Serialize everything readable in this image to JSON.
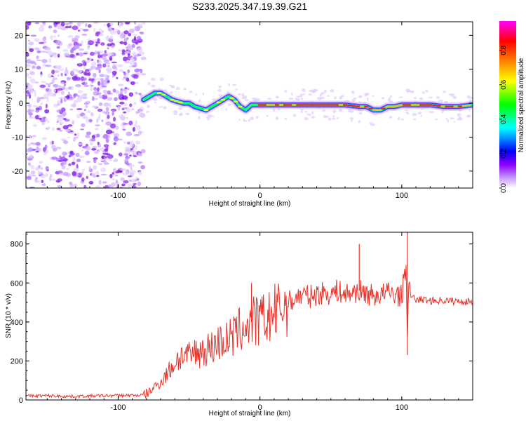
{
  "chart_data": [
    {
      "type": "heatmap",
      "title": "S233.2025.347.19.39.G21",
      "xlabel": "Height of straight line (km)",
      "ylabel": "Frequency (Hz)",
      "xlim": [
        -165,
        150
      ],
      "ylim": [
        -25,
        24
      ],
      "xticks": [
        -100,
        0,
        100
      ],
      "xtick_labels": [
        "-100",
        "0",
        "100"
      ],
      "yticks": [
        20,
        10,
        0,
        -10,
        -20
      ],
      "ytick_labels": [
        "20",
        "10",
        "0",
        "-10",
        "-20"
      ],
      "noise_region_x": [
        -165,
        -82
      ],
      "ridge": {
        "x": [
          -82,
          -78,
          -74,
          -70,
          -66,
          -62,
          -58,
          -54,
          -50,
          -46,
          -42,
          -38,
          -34,
          -30,
          -26,
          -22,
          -18,
          -14,
          -10,
          -6,
          -2,
          0,
          10,
          20,
          30,
          40,
          50,
          60,
          70,
          75,
          80,
          85,
          90,
          95,
          100,
          105,
          110,
          120,
          130,
          140,
          150
        ],
        "y": [
          1,
          2,
          3,
          3,
          2,
          1,
          0.5,
          0,
          0,
          -1,
          -1.5,
          -2,
          -1,
          0,
          1,
          2,
          1,
          -1,
          -2,
          -0.5,
          -0.5,
          -0.5,
          -0.5,
          -0.5,
          -0.5,
          -0.5,
          -0.5,
          -0.5,
          -1,
          -1,
          -2,
          -2,
          -1,
          -1,
          -0.5,
          -0.5,
          -0.5,
          -0.5,
          -1,
          -1,
          -0.5
        ]
      },
      "colorbar": {
        "label": "Normalized spectral amplitude",
        "range": [
          0,
          0.97
        ],
        "ticks": [
          0.0,
          0.2,
          0.4,
          0.6,
          0.8
        ],
        "tick_labels": [
          "0.0",
          "0.2",
          "0.4",
          "0.6",
          "0.8"
        ],
        "colors": [
          "#ffffff",
          "#8c00ff",
          "#0000ff",
          "#00ffff",
          "#00ff00",
          "#ffff00",
          "#ff8000",
          "#ff0000",
          "#ff00ff"
        ]
      }
    },
    {
      "type": "line",
      "title": "",
      "xlabel": "Height of straight line (km)",
      "ylabel": "SNR (10 * v/v)",
      "xlim": [
        -165,
        150
      ],
      "ylim": [
        0,
        860
      ],
      "xticks": [
        -100,
        0,
        100
      ],
      "xtick_labels": [
        "-100",
        "0",
        "100"
      ],
      "yticks": [
        0,
        200,
        400,
        600,
        800
      ],
      "ytick_labels": [
        "0",
        "200",
        "400",
        "600",
        "800"
      ],
      "color": "#e8322a",
      "series": [
        {
          "name": "SNR",
          "x": [
            -165,
            -150,
            -135,
            -120,
            -105,
            -90,
            -82,
            -78,
            -74,
            -70,
            -66,
            -62,
            -58,
            -54,
            -50,
            -46,
            -42,
            -38,
            -34,
            -30,
            -26,
            -22,
            -18,
            -14,
            -10,
            -6,
            -2,
            2,
            6,
            10,
            15,
            20,
            25,
            30,
            35,
            40,
            45,
            50,
            55,
            60,
            65,
            70,
            75,
            80,
            85,
            90,
            95,
            100,
            103,
            104,
            105,
            108,
            112,
            120,
            130,
            140,
            150
          ],
          "y": [
            20,
            22,
            18,
            20,
            22,
            24,
            25,
            40,
            70,
            90,
            130,
            170,
            210,
            230,
            220,
            240,
            250,
            260,
            270,
            290,
            300,
            310,
            330,
            360,
            380,
            400,
            400,
            410,
            420,
            440,
            470,
            500,
            520,
            540,
            530,
            540,
            550,
            545,
            560,
            540,
            550,
            560,
            545,
            535,
            540,
            550,
            545,
            530,
            700,
            330,
            560,
            520,
            515,
            510,
            510,
            505,
            505
          ]
        }
      ],
      "annotations": [
        {
          "x": -6,
          "y": 600
        },
        {
          "x": 70,
          "y": 800
        },
        {
          "x": 104,
          "y": 860
        },
        {
          "x": 104,
          "y": 230
        }
      ]
    }
  ]
}
